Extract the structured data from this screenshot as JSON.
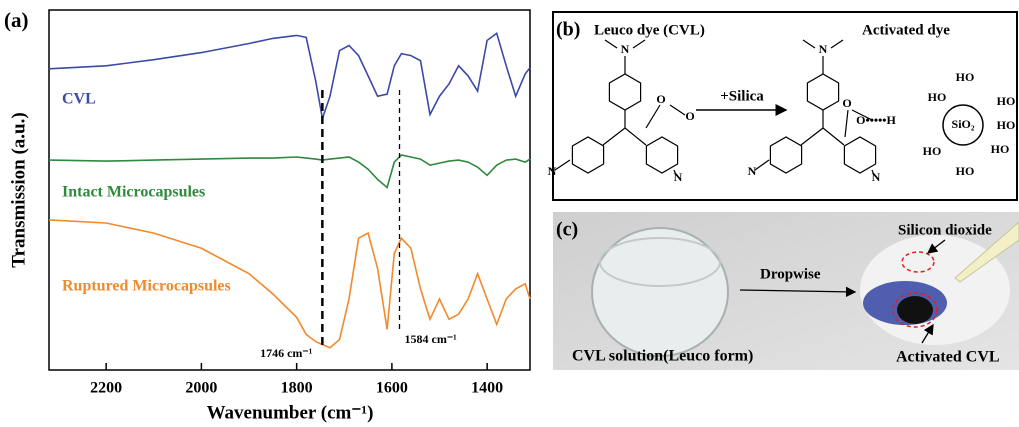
{
  "chart_data": {
    "type": "line",
    "panel_label": "(a)",
    "xlabel": "Wavenumber (cm⁻¹)",
    "ylabel": "Transmission (a.u.)",
    "x": [
      2320,
      2200,
      2100,
      2000,
      1900,
      1850,
      1800,
      1780,
      1760,
      1746,
      1730,
      1710,
      1690,
      1670,
      1650,
      1630,
      1610,
      1595,
      1580,
      1560,
      1540,
      1520,
      1500,
      1480,
      1460,
      1440,
      1420,
      1400,
      1380,
      1360,
      1340,
      1320,
      1310
    ],
    "xlim": [
      2320,
      1310
    ],
    "xticks": [
      2200,
      2000,
      1800,
      1600,
      1400
    ],
    "ylim": [
      0,
      355
    ],
    "grid": false,
    "series": [
      {
        "name": "CVL",
        "color": "#3b4aa6",
        "values": [
          297,
          300,
          306,
          313,
          322,
          327,
          330,
          328,
          285,
          248,
          270,
          315,
          320,
          310,
          290,
          270,
          272,
          300,
          312,
          310,
          305,
          252,
          270,
          282,
          300,
          290,
          275,
          325,
          332,
          300,
          270,
          292,
          298
        ]
      },
      {
        "name": "Intact Microcapsules",
        "color": "#2f8a3c",
        "values": [
          207,
          206,
          207,
          208,
          209,
          209,
          210,
          209,
          208,
          207,
          208,
          209,
          210,
          205,
          198,
          188,
          180,
          205,
          212,
          210,
          208,
          202,
          204,
          206,
          207,
          205,
          200,
          192,
          202,
          207,
          208,
          205,
          208
        ]
      },
      {
        "name": "Ruptured Microcapsules",
        "color": "#f08a2c",
        "values": [
          148,
          145,
          135,
          120,
          95,
          75,
          52,
          35,
          28,
          25,
          22,
          30,
          70,
          130,
          135,
          100,
          40,
          115,
          130,
          120,
          80,
          50,
          70,
          50,
          55,
          70,
          95,
          70,
          45,
          70,
          80,
          85,
          70
        ]
      }
    ],
    "annotations": [
      {
        "text": "1746 cm⁻¹",
        "x": 1746
      },
      {
        "text": "1584 cm⁻¹",
        "x": 1584
      }
    ]
  },
  "panel_b": {
    "label": "(b)",
    "left_title": "Leuco dye (CVL)",
    "right_title": "Activated dye",
    "reaction": "+Silica",
    "atoms": [
      "N",
      "O",
      "O",
      "N",
      "N",
      "N",
      "O",
      "O•••••H",
      "N",
      "N",
      "SiO₂",
      "HO",
      "HO",
      "HO",
      "HO",
      "HO",
      "HO",
      "HO"
    ]
  },
  "panel_c": {
    "label": "(c)",
    "annotations": [
      "Silicon dioxide",
      "Dropwise",
      "CVL solution(Leuco form)",
      "Activated CVL"
    ]
  }
}
